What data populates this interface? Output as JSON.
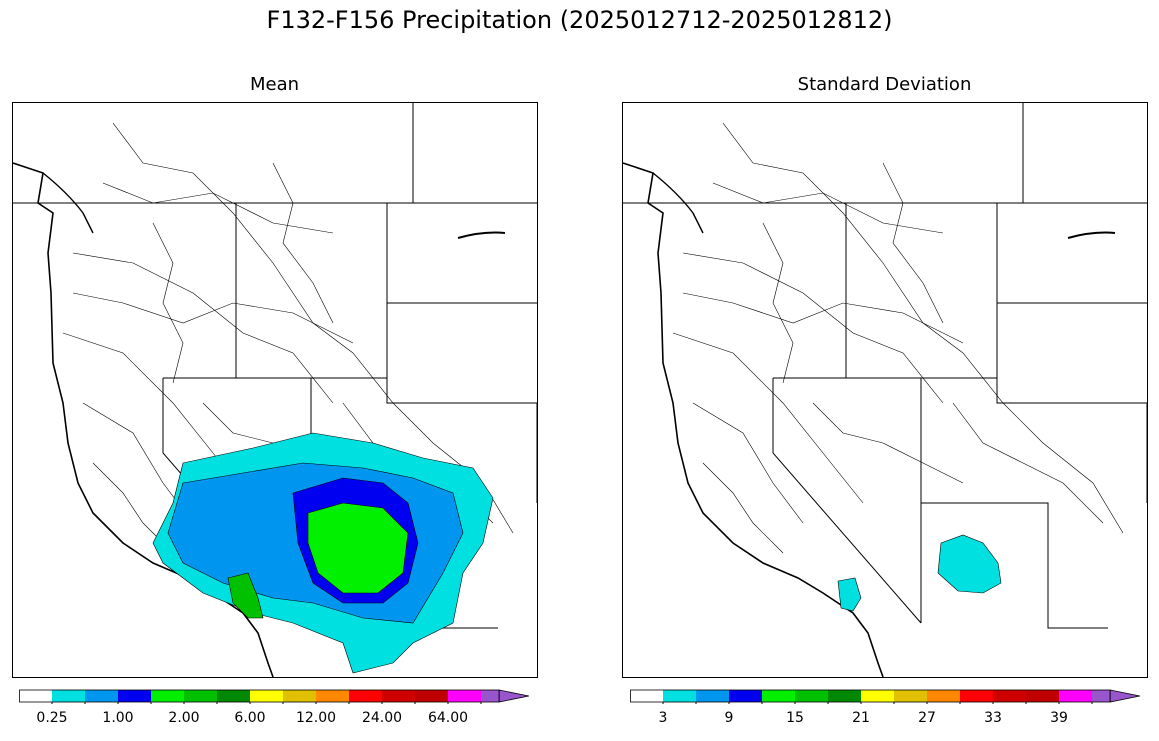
{
  "figure": {
    "title": "F132-F156 Precipitation (2025012712-2025012812)"
  },
  "panels": [
    {
      "id": "mean",
      "title": "Mean",
      "colorbar": {
        "colors": [
          "#ffffff",
          "#00e0e0",
          "#0096f0",
          "#0000f0",
          "#00f000",
          "#00c000",
          "#008800",
          "#ffff00",
          "#e0c000",
          "#ff8800",
          "#ff0000",
          "#d00000",
          "#c00000",
          "#ff00ff",
          "#9955cc"
        ],
        "tick_labels": [
          "0.25",
          "1.00",
          "2.00",
          "6.00",
          "12.00",
          "24.00",
          "64.00"
        ],
        "extend": "max"
      },
      "shading": [
        {
          "region": "southern-great-basin-and-colorado-plateau",
          "color": "#00e0e0"
        },
        {
          "region": "southern-california-and-arizona",
          "color": "#0096f0"
        },
        {
          "region": "mogollon-rim-arizona",
          "color": "#0000f0"
        },
        {
          "region": "central-arizona",
          "color": "#00f000"
        },
        {
          "region": "southern-california-coast",
          "color": "#00c000"
        }
      ]
    },
    {
      "id": "std",
      "title": "Standard Deviation",
      "colorbar": {
        "colors": [
          "#ffffff",
          "#00e0e0",
          "#0096f0",
          "#0000f0",
          "#00f000",
          "#00c000",
          "#008800",
          "#ffff00",
          "#e0c000",
          "#ff8800",
          "#ff0000",
          "#d00000",
          "#c00000",
          "#ff00ff",
          "#9955cc"
        ],
        "tick_labels": [
          "3",
          "9",
          "15",
          "21",
          "27",
          "33",
          "39"
        ],
        "extend": "max"
      },
      "shading": [
        {
          "region": "central-arizona",
          "color": "#00e0e0"
        },
        {
          "region": "southern-california-coast",
          "color": "#00e0e0"
        }
      ]
    }
  ]
}
